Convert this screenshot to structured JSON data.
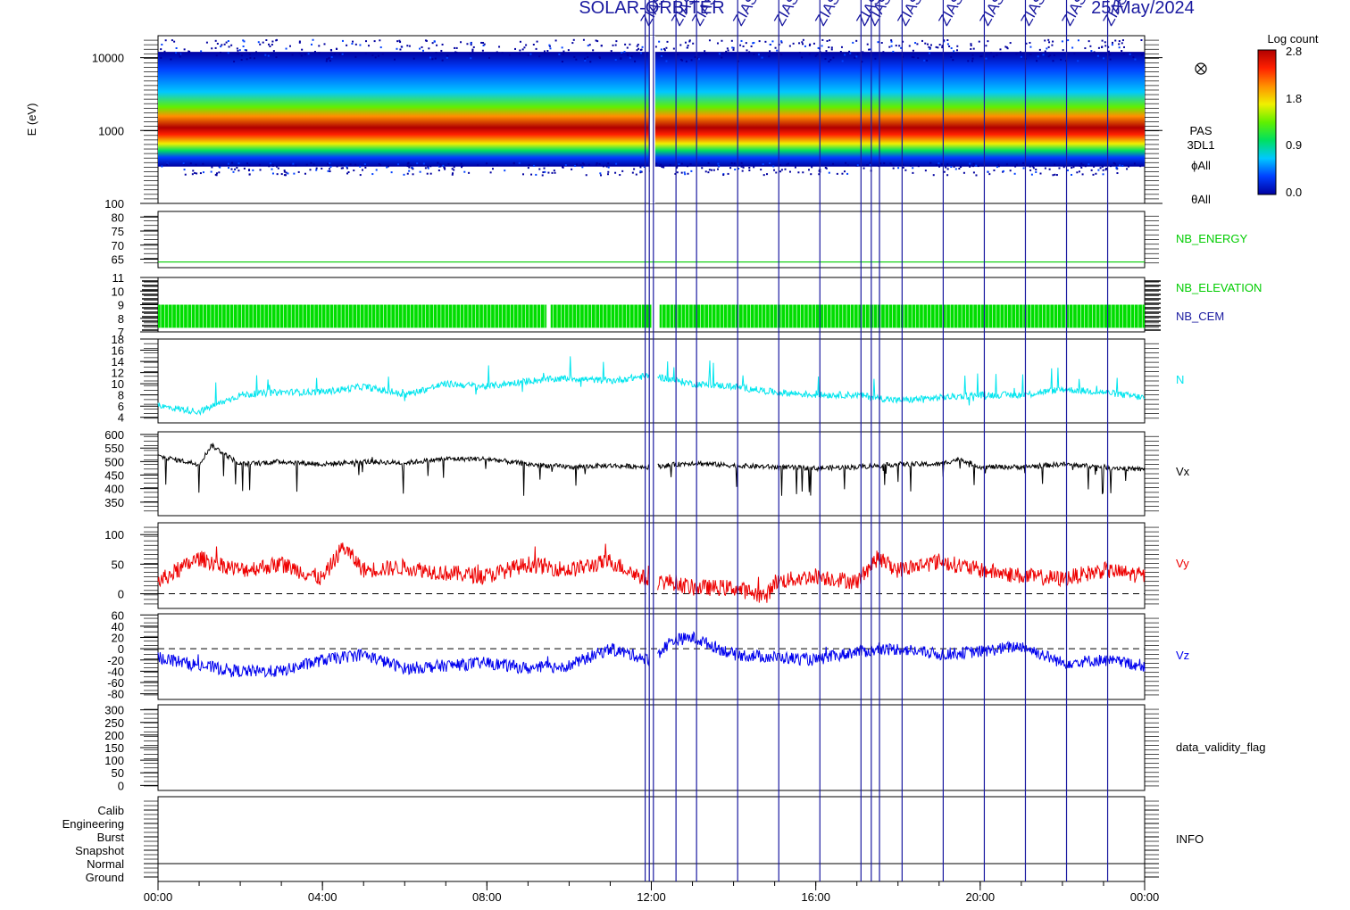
{
  "header": {
    "title": "SOLAR-ORBITER",
    "date": "25/May/2024"
  },
  "colorbar": {
    "title": "Log count",
    "ticks": [
      "2.8",
      "1.8",
      "0.9",
      "0.0"
    ],
    "colors": [
      "#0000a0",
      "#0040ff",
      "#00c8ff",
      "#00e060",
      "#60f000",
      "#f0f000",
      "#ff9000",
      "#ff2000",
      "#b00000"
    ]
  },
  "annotation_lines": {
    "color": "#1a1aa0",
    "label": "ZIAS",
    "times": [
      11.85,
      11.95,
      12.05,
      12.6,
      13.1,
      14.1,
      15.1,
      16.1,
      17.1,
      17.35,
      17.55,
      18.1,
      19.1,
      20.1,
      21.1,
      22.1,
      23.1
    ]
  },
  "x_axis": {
    "ticks": [
      "00:00",
      "04:00",
      "08:00",
      "12:00",
      "16:00",
      "20:00",
      "00:00"
    ],
    "range_hours": [
      0,
      24
    ]
  },
  "chart_data": [
    {
      "type": "heatmap",
      "ylabel": "E (eV)",
      "yscale": "log",
      "ylim": [
        100,
        20000
      ],
      "yticks": [
        "10000",
        "1000",
        "100"
      ],
      "right_labels": [
        "PAS",
        "3DL1",
        "ϕAll",
        "θAll"
      ],
      "side_icon": "circle-cross-icon",
      "peak_energy_eV": 1500,
      "colormap": "rainbow"
    },
    {
      "type": "line",
      "name": "NB_ENERGY",
      "color": "#00cc00",
      "ylim": [
        62,
        82
      ],
      "yticks": [
        "80",
        "75",
        "70",
        "65"
      ],
      "values": [
        64,
        64
      ]
    },
    {
      "type": "area",
      "names": [
        "NB_ELEVATION",
        "NB_CEM"
      ],
      "name_colors": [
        "#00cc00",
        "#1a1aa0"
      ],
      "color": "#00dd00",
      "ylim": [
        7,
        11
      ],
      "yticks": [
        "11",
        "10",
        "9",
        "8",
        "7"
      ],
      "range": [
        7.3,
        9.0
      ],
      "gaps_hours": [
        [
          9.45,
          9.55
        ],
        [
          12.0,
          12.2
        ]
      ]
    },
    {
      "type": "line",
      "name": "N",
      "color": "#00e5ee",
      "ylim": [
        3,
        18
      ],
      "yticks": [
        "18",
        "16",
        "14",
        "12",
        "10",
        "8",
        "6",
        "4"
      ],
      "x": [
        0,
        1,
        2,
        3,
        4,
        5,
        6,
        7,
        8,
        9,
        10,
        11,
        12,
        13,
        14,
        15,
        16,
        17,
        18,
        19,
        20,
        21,
        22,
        23,
        24
      ],
      "values": [
        6.0,
        5.0,
        8.0,
        8.5,
        8.5,
        9.5,
        8.0,
        10.0,
        9.5,
        10.5,
        11.0,
        10.5,
        11.5,
        10.0,
        9.5,
        8.5,
        8.0,
        8.0,
        7.0,
        7.5,
        8.0,
        8.0,
        9.0,
        8.5,
        7.5
      ]
    },
    {
      "type": "line",
      "name": "Vx",
      "color": "#000000",
      "ylim": [
        300,
        610
      ],
      "yticks": [
        "600",
        "550",
        "500",
        "450",
        "400",
        "350"
      ],
      "x": [
        0,
        1,
        1.3,
        2,
        3,
        4,
        5,
        6,
        7,
        8,
        9,
        10,
        11,
        12,
        13,
        14,
        15,
        16,
        17,
        18,
        19,
        19.5,
        20,
        21,
        22,
        23,
        24
      ],
      "values": [
        520,
        490,
        560,
        490,
        500,
        490,
        500,
        495,
        510,
        510,
        490,
        480,
        485,
        480,
        495,
        485,
        480,
        475,
        480,
        490,
        490,
        510,
        480,
        480,
        490,
        480,
        470
      ]
    },
    {
      "type": "line",
      "name": "Vy",
      "color": "#ee0000",
      "ylim": [
        -25,
        120
      ],
      "yticks": [
        "100",
        "50",
        "0"
      ],
      "x": [
        0,
        1,
        2,
        3,
        4,
        4.5,
        5,
        6,
        7,
        8,
        9,
        10,
        11,
        12,
        12.5,
        13,
        14,
        14.8,
        15,
        16,
        17,
        17.5,
        18,
        19,
        20,
        21,
        22,
        23,
        24
      ],
      "values": [
        20,
        60,
        40,
        50,
        25,
        80,
        40,
        45,
        35,
        30,
        50,
        40,
        55,
        20,
        20,
        10,
        10,
        -5,
        20,
        30,
        20,
        60,
        40,
        55,
        40,
        30,
        25,
        40,
        30
      ]
    },
    {
      "type": "line",
      "name": "Vz",
      "color": "#0000ee",
      "ylim": [
        -90,
        62
      ],
      "yticks": [
        "60",
        "40",
        "20",
        "0",
        "-20",
        "-40",
        "-60",
        "-80"
      ],
      "x": [
        0,
        1,
        2,
        3,
        4,
        5,
        6,
        7,
        8,
        9,
        10,
        11,
        12,
        12.5,
        13,
        14,
        15,
        16,
        17,
        18,
        19,
        20,
        21,
        22,
        23,
        24
      ],
      "values": [
        -15,
        -30,
        -40,
        -40,
        -20,
        -10,
        -35,
        -30,
        -25,
        -35,
        -30,
        0,
        -20,
        15,
        20,
        -10,
        -15,
        -20,
        -5,
        0,
        -10,
        -5,
        5,
        -25,
        -20,
        -30
      ]
    },
    {
      "type": "line",
      "name": "data_validity_flag",
      "ylim": [
        -20,
        320
      ],
      "yticks": [
        "300",
        "250",
        "200",
        "150",
        "100",
        "50",
        "0"
      ]
    },
    {
      "type": "line",
      "name": "INFO",
      "color": "#000000",
      "ycategories": [
        "Calib",
        "Engineering",
        "Burst",
        "Snapshot",
        "Normal",
        "Ground"
      ],
      "level": "Normal"
    }
  ]
}
